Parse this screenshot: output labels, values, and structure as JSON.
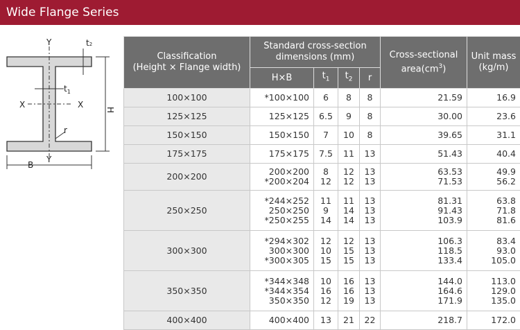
{
  "header": {
    "title": "Wide Flange Series"
  },
  "diagram": {
    "y_top": "Y",
    "y_bottom": "Y",
    "x_left": "X",
    "x_right": "X",
    "t1": {
      "base": "t",
      "sub": "1"
    },
    "t2": {
      "base": "t",
      "sub": "2"
    },
    "h": "H",
    "b": "B",
    "r": "r"
  },
  "table": {
    "headers": {
      "classification": [
        "Classification",
        "(Height × Flange width)"
      ],
      "dimensions": [
        "Standard cross-section",
        "dimensions (mm)"
      ],
      "area": {
        "line1": "Cross-sectional",
        "line2": "area(cm",
        "sup": "3",
        "tail": ")"
      },
      "mass": [
        "Unit mass",
        "(kg/m)"
      ],
      "hb": "H×B",
      "t1": {
        "base": "t",
        "sub": "1"
      },
      "t2": {
        "base": "t",
        "sub": "2"
      },
      "r": "r"
    },
    "rows": [
      {
        "classification": "100×100",
        "items": [
          [
            "*100×100",
            "6",
            "8",
            "8",
            "21.59",
            "16.9"
          ]
        ]
      },
      {
        "classification": "125×125",
        "items": [
          [
            "125×125",
            "6.5",
            "9",
            "8",
            "30.00",
            "23.6"
          ]
        ]
      },
      {
        "classification": "150×150",
        "items": [
          [
            "150×150",
            "7",
            "10",
            "8",
            "39.65",
            "31.1"
          ]
        ]
      },
      {
        "classification": "175×175",
        "items": [
          [
            "175×175",
            "7.5",
            "11",
            "13",
            "51.43",
            "40.4"
          ]
        ]
      },
      {
        "classification": "200×200",
        "items": [
          [
            "200×200",
            "8",
            "12",
            "13",
            "63.53",
            "49.9"
          ],
          [
            "*200×204",
            "12",
            "12",
            "13",
            "71.53",
            "56.2"
          ]
        ]
      },
      {
        "classification": "250×250",
        "items": [
          [
            "*244×252",
            "11",
            "11",
            "13",
            "81.31",
            "63.8"
          ],
          [
            "250×250",
            "9",
            "14",
            "13",
            "91.43",
            "71.8"
          ],
          [
            "*250×255",
            "14",
            "14",
            "13",
            "103.9",
            "81.6"
          ]
        ]
      },
      {
        "classification": "300×300",
        "items": [
          [
            "*294×302",
            "12",
            "12",
            "13",
            "106.3",
            "83.4"
          ],
          [
            "300×300",
            "10",
            "15",
            "13",
            "118.5",
            "93.0"
          ],
          [
            "*300×305",
            "15",
            "15",
            "13",
            "133.4",
            "105.0"
          ]
        ]
      },
      {
        "classification": "350×350",
        "items": [
          [
            "*344×348",
            "10",
            "16",
            "13",
            "144.0",
            "113.0"
          ],
          [
            "*344×354",
            "16",
            "16",
            "13",
            "164.6",
            "129.0"
          ],
          [
            "350×350",
            "12",
            "19",
            "13",
            "171.9",
            "135.0"
          ]
        ]
      },
      {
        "classification": "400×400",
        "items": [
          [
            "400×400",
            "13",
            "21",
            "22",
            "218.7",
            "172.0"
          ]
        ]
      }
    ]
  }
}
